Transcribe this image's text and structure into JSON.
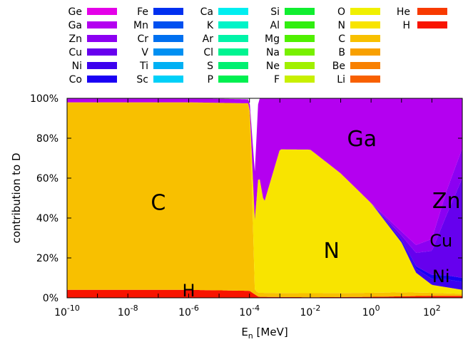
{
  "chart_data": {
    "type": "area",
    "xlabel": "E_n [MeV]",
    "xlabel_main": "E",
    "xlabel_sub": "n",
    "xlabel_unit": " [MeV]",
    "ylabel": "contribution to D",
    "xscale": "log",
    "xlim": [
      1e-10,
      1000
    ],
    "ylim": [
      0,
      100
    ],
    "x_ticks": [
      {
        "base": "10",
        "exp": "-10"
      },
      {
        "base": "10",
        "exp": "-8"
      },
      {
        "base": "10",
        "exp": "-6"
      },
      {
        "base": "10",
        "exp": "-4"
      },
      {
        "base": "10",
        "exp": "-2"
      },
      {
        "base": "10",
        "exp": "0"
      },
      {
        "base": "10",
        "exp": "2"
      }
    ],
    "y_ticks": [
      "0%",
      "20%",
      "40%",
      "60%",
      "80%",
      "100%"
    ],
    "legend": [
      {
        "name": "Ge",
        "color": "#e400e8"
      },
      {
        "name": "Ga",
        "color": "#b400f0"
      },
      {
        "name": "Zn",
        "color": "#8c00f2"
      },
      {
        "name": "Cu",
        "color": "#6600ee"
      },
      {
        "name": "Ni",
        "color": "#3c00ee"
      },
      {
        "name": "Co",
        "color": "#1a00f4"
      },
      {
        "name": "Fe",
        "color": "#0030f0"
      },
      {
        "name": "Mn",
        "color": "#0050f0"
      },
      {
        "name": "Cr",
        "color": "#0070f0"
      },
      {
        "name": "V",
        "color": "#0090f2"
      },
      {
        "name": "Ti",
        "color": "#00b0f4"
      },
      {
        "name": "Sc",
        "color": "#00d0f8"
      },
      {
        "name": "Ca",
        "color": "#00eef0"
      },
      {
        "name": "K",
        "color": "#00f4c8"
      },
      {
        "name": "Ar",
        "color": "#00f4a8"
      },
      {
        "name": "Cl",
        "color": "#00f490"
      },
      {
        "name": "S",
        "color": "#00f070"
      },
      {
        "name": "P",
        "color": "#00f050"
      },
      {
        "name": "Si",
        "color": "#10ee30"
      },
      {
        "name": "Al",
        "color": "#30ee10"
      },
      {
        "name": "Mg",
        "color": "#50f000"
      },
      {
        "name": "Na",
        "color": "#78f000"
      },
      {
        "name": "Ne",
        "color": "#a0f000"
      },
      {
        "name": "F",
        "color": "#c8f000"
      },
      {
        "name": "O",
        "color": "#f0f000"
      },
      {
        "name": "N",
        "color": "#f8e400"
      },
      {
        "name": "C",
        "color": "#f8c000"
      },
      {
        "name": "B",
        "color": "#f8a000"
      },
      {
        "name": "Be",
        "color": "#f88000"
      },
      {
        "name": "Li",
        "color": "#f86000"
      },
      {
        "name": "He",
        "color": "#f83a00"
      },
      {
        "name": "H",
        "color": "#f81400"
      }
    ],
    "region_labels": [
      {
        "text": "C",
        "x": 1e-07,
        "y": 48
      },
      {
        "text": "N",
        "x": 0.05,
        "y": 24
      },
      {
        "text": "Ga",
        "x": 0.5,
        "y": 80
      },
      {
        "text": "Zn",
        "x": 300,
        "y": 49
      },
      {
        "text": "Cu",
        "x": 200,
        "y": 29
      },
      {
        "text": "Ni",
        "x": 200,
        "y": 11
      },
      {
        "text": "H",
        "x": 1e-06,
        "y": 4
      }
    ],
    "series": [
      {
        "name": "H",
        "color": "#f81400",
        "x": [
          1e-10,
          1e-06,
          0.0001,
          0.0002,
          0.01,
          1,
          100,
          1000
        ],
        "y": [
          4,
          4,
          3.5,
          0.5,
          0.3,
          0.5,
          1,
          1
        ]
      },
      {
        "name": "C",
        "color": "#f8c000",
        "x": [
          1e-10,
          1e-06,
          0.0001,
          0.00015,
          0.0003,
          0.01,
          1,
          10,
          1000
        ],
        "y": [
          94,
          94,
          94,
          2,
          2,
          2,
          2,
          2,
          1
        ]
      },
      {
        "name": "N",
        "color": "#f8e400",
        "x": [
          1e-10,
          0.0001,
          0.0002,
          0.0003,
          0.001,
          0.01,
          0.1,
          1,
          10,
          30,
          100,
          1000
        ],
        "y": [
          0,
          0,
          60,
          45,
          72,
          72,
          60,
          45,
          25,
          10,
          4,
          2
        ]
      },
      {
        "name": "Ni",
        "color": "#3c00ee",
        "x": [
          1e-10,
          1,
          10,
          100,
          300,
          1000
        ],
        "y": [
          0,
          0,
          1,
          3,
          4,
          4
        ]
      },
      {
        "name": "Co",
        "color": "#1a00f4",
        "x": [
          1e-10,
          1,
          10,
          100,
          300,
          1000
        ],
        "y": [
          0,
          0,
          0.5,
          2,
          2,
          2
        ]
      },
      {
        "name": "Cu",
        "color": "#6600ee",
        "x": [
          1e-10,
          1,
          10,
          100,
          300,
          1000
        ],
        "y": [
          0,
          0,
          2,
          12,
          30,
          50
        ]
      },
      {
        "name": "Zn",
        "color": "#8c00f2",
        "x": [
          1e-10,
          1,
          10,
          100,
          300,
          1000
        ],
        "y": [
          0,
          0,
          2,
          6,
          12,
          15
        ]
      },
      {
        "name": "Ga",
        "color": "#b400f0",
        "x": [
          1e-10,
          0.0001,
          0.0002,
          0.0003,
          0.001,
          0.01,
          0.1,
          1,
          10,
          30,
          100,
          1000
        ],
        "y": [
          2,
          2,
          40,
          55,
          28,
          28,
          40,
          55,
          70,
          85,
          75,
          26
        ]
      }
    ]
  }
}
